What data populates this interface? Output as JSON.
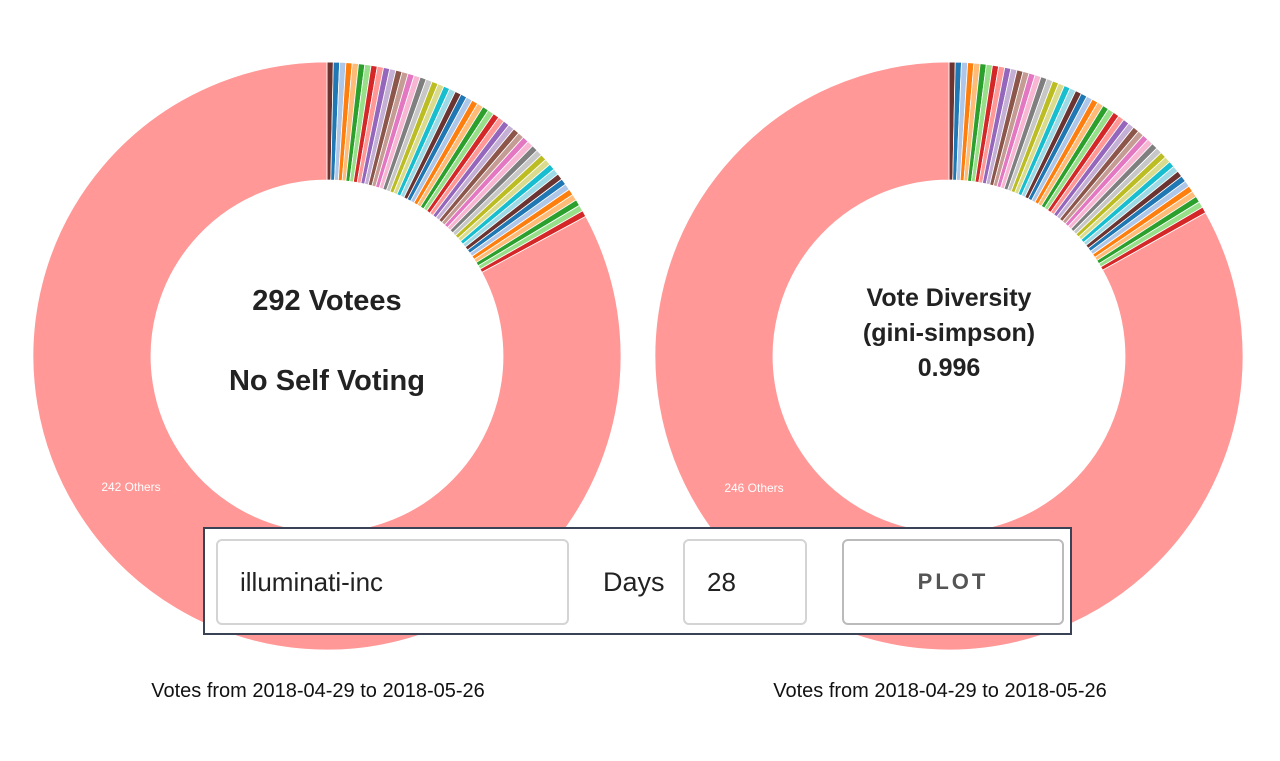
{
  "chart_data": [
    {
      "type": "pie",
      "subtype": "donut",
      "title_lines": [
        "292 Votees",
        "",
        "No Self Voting"
      ],
      "total_votees": 292,
      "others_label": "242 Others",
      "others_value": 242,
      "named_slice_count": 50,
      "named_slice_value": 1,
      "footer": "Votes from 2018-04-29 to 2018-05-26",
      "date_from": "2018-04-29",
      "date_to": "2018-05-26"
    },
    {
      "type": "pie",
      "subtype": "donut",
      "title_lines": [
        "Vote Diversity",
        "(gini-simpson)",
        "0.996"
      ],
      "metric_name": "Vote Diversity (gini-simpson)",
      "metric_value": 0.996,
      "others_label": "246 Others",
      "others_value": 246,
      "named_slice_count": 50,
      "named_slice_value": 1,
      "footer": "Votes from 2018-04-29 to 2018-05-26",
      "date_from": "2018-04-29",
      "date_to": "2018-05-26"
    }
  ],
  "palette": [
    "#6b3431",
    "#1f77b4",
    "#aec7e8",
    "#ff7f0e",
    "#ffbb78",
    "#2ca02c",
    "#98df8a",
    "#d62728",
    "#ff9896",
    "#9467bd",
    "#c5b0d5",
    "#8c564b",
    "#c49c94",
    "#e377c2",
    "#f7b6d2",
    "#7f7f7f",
    "#c7c7c7",
    "#bcbd22",
    "#dbdb8d",
    "#17becf",
    "#9edae5"
  ],
  "others_color": "#ff9896",
  "controls": {
    "user_value": "illuminati-inc",
    "days_label": "Days",
    "days_value": "28",
    "plot_label": "PLOT"
  }
}
